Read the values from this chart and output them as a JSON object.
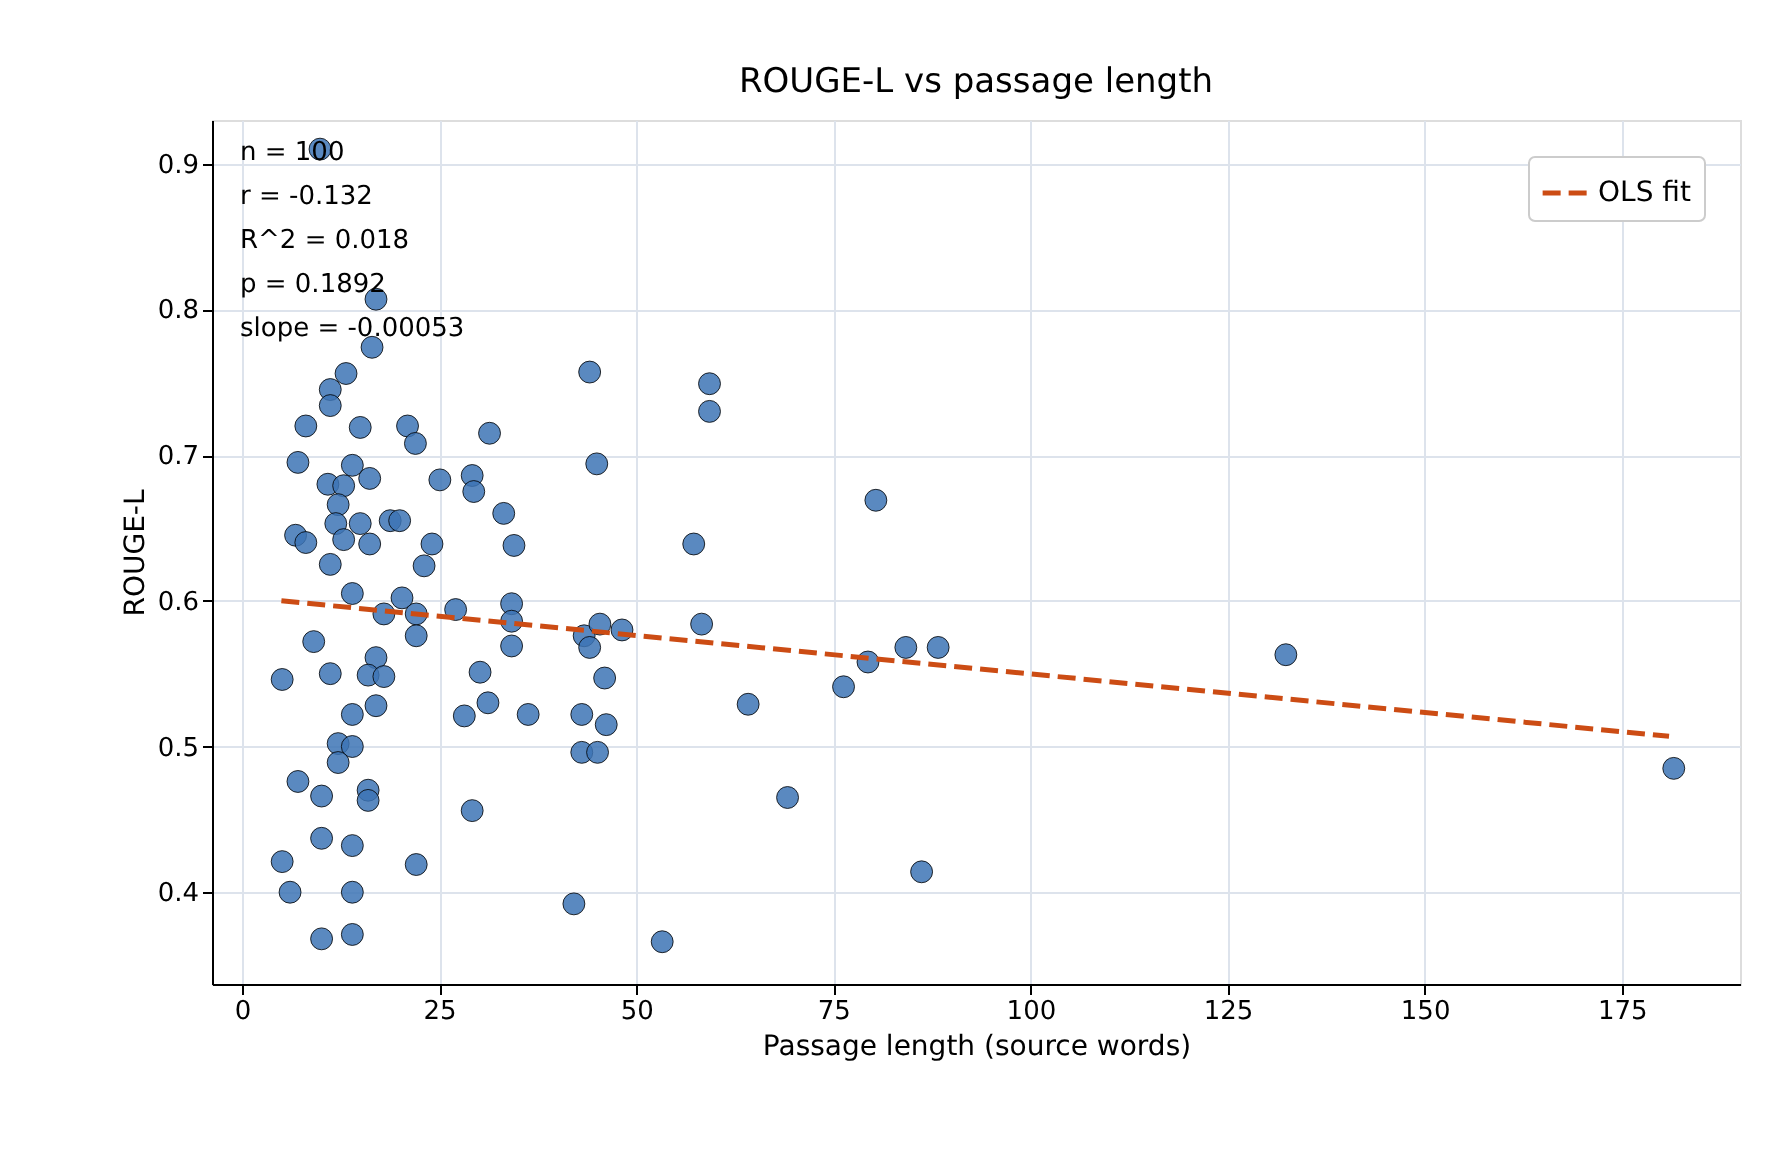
{
  "chart_data": {
    "type": "scatter",
    "title": "ROUGE-L vs passage length",
    "xlabel": "Passage length (source words)",
    "ylabel": "ROUGE-L",
    "xlim": [
      -3.8,
      190
    ],
    "ylim": [
      0.337,
      0.93
    ],
    "xticks": [
      0,
      25,
      50,
      75,
      100,
      125,
      150,
      175
    ],
    "yticks": [
      0.4,
      0.5,
      0.6,
      0.7,
      0.8,
      0.9
    ],
    "grid": true,
    "legend": "top right",
    "annotations": [
      "n = 100",
      "r = -0.132",
      "R^2 = 0.018",
      "p = 0.1892",
      "slope = -0.00053"
    ],
    "series": [
      {
        "marker": "circle",
        "color": "#3d74b5",
        "x": [
          9.9,
          17,
          16.5,
          13.2,
          11.2,
          11.2,
          8.1,
          15,
          21,
          22,
          31.4,
          44.1,
          45,
          7.1,
          14,
          16.2,
          10.9,
          12.9,
          25.1,
          29.2,
          29.4,
          12.2,
          33.2,
          6.8,
          8.1,
          11.9,
          12.9,
          15,
          16.2,
          18.8,
          20,
          24.1,
          34.5,
          11.2,
          23.1,
          14,
          18,
          20.3,
          22.1,
          22.1,
          27.1,
          34.2,
          34.2,
          34.2,
          43.4,
          44.1,
          45.4,
          46,
          9.1,
          5.1,
          11.2,
          17,
          16,
          18,
          17,
          14,
          30.2,
          31.2,
          28.2,
          36.3,
          43.1,
          46.2,
          12.2,
          14,
          12.2,
          43.1,
          45.1,
          7.1,
          10.1,
          16,
          16,
          29.2,
          10.1,
          14,
          5.1,
          22.1,
          6.1,
          14,
          42.1,
          10.1,
          14,
          59.3,
          59.3,
          80.4,
          57.3,
          58.3,
          48.2,
          64.2,
          76.3,
          79.4,
          84.2,
          88.3,
          69.2,
          86.2,
          53.3,
          132.4,
          181.6
        ],
        "values": [
          0.91,
          0.807,
          0.774,
          0.756,
          0.745,
          0.734,
          0.72,
          0.719,
          0.72,
          0.708,
          0.715,
          0.757,
          0.694,
          0.695,
          0.693,
          0.684,
          0.68,
          0.679,
          0.683,
          0.686,
          0.675,
          0.666,
          0.66,
          0.645,
          0.64,
          0.653,
          0.642,
          0.653,
          0.639,
          0.655,
          0.655,
          0.639,
          0.638,
          0.625,
          0.624,
          0.605,
          0.591,
          0.602,
          0.591,
          0.576,
          0.594,
          0.598,
          0.586,
          0.569,
          0.576,
          0.568,
          0.584,
          0.547,
          0.572,
          0.546,
          0.55,
          0.561,
          0.549,
          0.548,
          0.528,
          0.522,
          0.551,
          0.53,
          0.521,
          0.522,
          0.522,
          0.515,
          0.502,
          0.5,
          0.489,
          0.496,
          0.496,
          0.476,
          0.466,
          0.47,
          0.463,
          0.456,
          0.437,
          0.432,
          0.421,
          0.419,
          0.4,
          0.4,
          0.392,
          0.368,
          0.371,
          0.749,
          0.73,
          0.669,
          0.639,
          0.584,
          0.58,
          0.529,
          0.541,
          0.558,
          0.568,
          0.568,
          0.465,
          0.414,
          0.366,
          0.563,
          0.485
        ]
      },
      {
        "type": "line",
        "name": "OLS fit",
        "color": "#cc4c14",
        "line_style": "dashed",
        "x": [
          5,
          181
        ],
        "values": [
          0.6,
          0.507
        ]
      }
    ]
  }
}
